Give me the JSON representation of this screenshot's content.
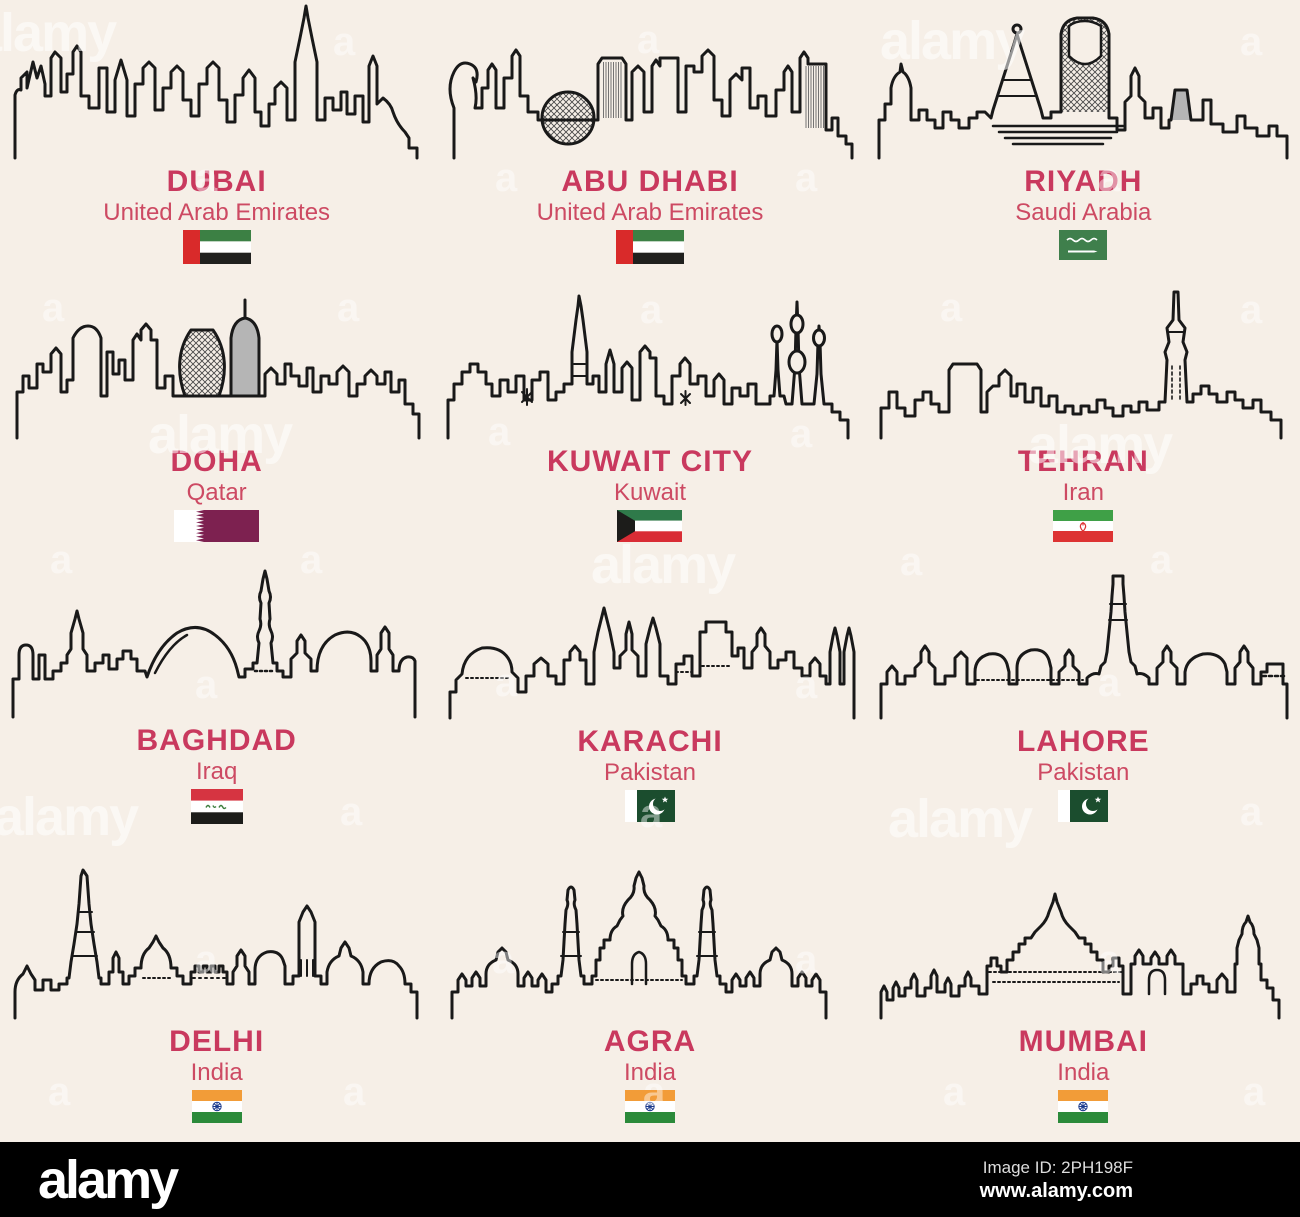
{
  "page": {
    "background": "#f6efe7"
  },
  "colors": {
    "accent_city": "#c9395e",
    "accent_country": "#cd4a63",
    "outline": "#191919",
    "footer_bg": "#000000"
  },
  "watermark": {
    "word": "alamy",
    "letter": "a"
  },
  "footer": {
    "logo": "alamy",
    "image_id_line": "Image ID: 2PH198F",
    "url": "www.alamy.com"
  },
  "cities": [
    {
      "id": "dubai",
      "name": "DUBAI",
      "country": "United Arab Emirates",
      "flag": "are"
    },
    {
      "id": "abudhabi",
      "name": "ABU DHABI",
      "country": "United Arab Emirates",
      "flag": "are"
    },
    {
      "id": "riyadh",
      "name": "RIYADH",
      "country": "Saudi Arabia",
      "flag": "sau"
    },
    {
      "id": "doha",
      "name": "DOHA",
      "country": "Qatar",
      "flag": "qat"
    },
    {
      "id": "kuwait",
      "name": "KUWAIT CITY",
      "country": "Kuwait",
      "flag": "kwt"
    },
    {
      "id": "tehran",
      "name": "TEHRAN",
      "country": "Iran",
      "flag": "irn"
    },
    {
      "id": "baghdad",
      "name": "BAGHDAD",
      "country": "Iraq",
      "flag": "irq"
    },
    {
      "id": "karachi",
      "name": "KARACHI",
      "country": "Pakistan",
      "flag": "pak"
    },
    {
      "id": "lahore",
      "name": "LAHORE",
      "country": "Pakistan",
      "flag": "pak"
    },
    {
      "id": "delhi",
      "name": "DELHI",
      "country": "India",
      "flag": "ind"
    },
    {
      "id": "agra",
      "name": "AGRA",
      "country": "India",
      "flag": "ind"
    },
    {
      "id": "mumbai",
      "name": "MUMBAI",
      "country": "India",
      "flag": "ind"
    }
  ],
  "flags": {
    "are": {
      "red": "#d92a2a",
      "green": "#3c8044",
      "white": "#ffffff",
      "black": "#20201e"
    },
    "sau": {
      "green": "#3f7f4c",
      "white": "#ffffff"
    },
    "qat": {
      "maroon": "#7d2150",
      "white": "#ffffff"
    },
    "kwt": {
      "green": "#2f7a4a",
      "white": "#ffffff",
      "red": "#d92c35",
      "black": "#1c1c1a"
    },
    "irn": {
      "green": "#3fa047",
      "white": "#ffffff",
      "red": "#dd3333"
    },
    "irq": {
      "red": "#d63441",
      "white": "#ffffff",
      "black": "#1c1c1a",
      "green": "#3f7f3f"
    },
    "pak": {
      "green": "#1b4d2e",
      "white": "#ffffff"
    },
    "ind": {
      "saffron": "#f29c38",
      "white": "#ffffff",
      "green": "#2b8a3a",
      "navy": "#1b3a8c"
    }
  }
}
